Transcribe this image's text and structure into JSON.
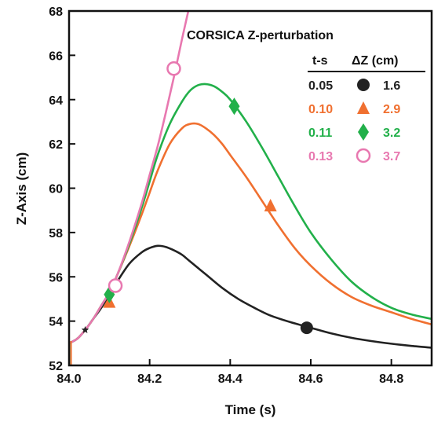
{
  "chart_data": {
    "type": "line",
    "title": "CORSICA Z-perturbation",
    "xlabel": "Time (s)",
    "ylabel": "Z-Axis (cm)",
    "xlim": [
      84.0,
      84.9
    ],
    "ylim": [
      52,
      68
    ],
    "x_ticks": [
      "84.0",
      "84.2",
      "84.4",
      "84.6",
      "84.8"
    ],
    "x_tick_values": [
      84.0,
      84.2,
      84.4,
      84.6,
      84.8
    ],
    "y_ticks": [
      "52",
      "54",
      "56",
      "58",
      "60",
      "62",
      "64",
      "66",
      "68"
    ],
    "y_tick_values": [
      52,
      54,
      56,
      58,
      60,
      62,
      64,
      66,
      68
    ],
    "legend": {
      "header_ts": "t-s",
      "header_dz": "ΔZ (cm)",
      "placement": "top-right"
    },
    "series": [
      {
        "ts": "0.05",
        "dz": "1.6",
        "color": "#222222",
        "marker": "filled-circle",
        "x": [
          84.0,
          84.02,
          84.04,
          84.06,
          84.08,
          84.1,
          84.12,
          84.15,
          84.18,
          84.2,
          84.22,
          84.24,
          84.26,
          84.28,
          84.3,
          84.34,
          84.38,
          84.42,
          84.46,
          84.5,
          84.55,
          84.6,
          84.65,
          84.7,
          84.75,
          84.8,
          84.85,
          84.9
        ],
        "y": [
          53.0,
          53.2,
          53.6,
          54.1,
          54.6,
          55.2,
          55.8,
          56.6,
          57.1,
          57.3,
          57.4,
          57.35,
          57.2,
          57.0,
          56.7,
          56.1,
          55.5,
          55.0,
          54.6,
          54.25,
          53.95,
          53.7,
          53.45,
          53.25,
          53.1,
          52.98,
          52.88,
          52.8
        ],
        "marker_points": [
          {
            "x": 84.59,
            "y": 53.7
          }
        ]
      },
      {
        "ts": "0.10",
        "dz": "2.9",
        "color": "#f07030",
        "marker": "filled-triangle",
        "x": [
          84.0,
          84.02,
          84.04,
          84.06,
          84.08,
          84.1,
          84.12,
          84.15,
          84.18,
          84.2,
          84.22,
          84.25,
          84.28,
          84.3,
          84.32,
          84.34,
          84.36,
          84.38,
          84.4,
          84.44,
          84.48,
          84.52,
          84.56,
          84.6,
          84.65,
          84.7,
          84.75,
          84.8,
          84.85,
          84.9
        ],
        "y": [
          53.0,
          53.2,
          53.6,
          54.1,
          54.7,
          55.3,
          56.1,
          57.4,
          58.8,
          59.8,
          60.8,
          62.0,
          62.7,
          62.9,
          62.9,
          62.7,
          62.4,
          62.0,
          61.5,
          60.5,
          59.4,
          58.3,
          57.3,
          56.5,
          55.7,
          55.1,
          54.7,
          54.4,
          54.1,
          53.85
        ],
        "marker_points": [
          {
            "x": 84.1,
            "y": 54.85
          },
          {
            "x": 84.5,
            "y": 59.2
          }
        ]
      },
      {
        "ts": "0.11",
        "dz": "3.2",
        "color": "#22b04a",
        "marker": "filled-diamond",
        "x": [
          84.0,
          84.02,
          84.04,
          84.06,
          84.08,
          84.1,
          84.12,
          84.15,
          84.18,
          84.2,
          84.22,
          84.25,
          84.28,
          84.3,
          84.32,
          84.34,
          84.36,
          84.38,
          84.4,
          84.44,
          84.48,
          84.52,
          84.56,
          84.6,
          84.65,
          84.7,
          84.75,
          84.8,
          84.85,
          84.9
        ],
        "y": [
          53.0,
          53.2,
          53.6,
          54.1,
          54.7,
          55.3,
          56.1,
          57.5,
          59.1,
          60.3,
          61.5,
          62.9,
          63.9,
          64.4,
          64.65,
          64.7,
          64.6,
          64.35,
          64.0,
          63.0,
          61.8,
          60.5,
          59.2,
          58.0,
          56.8,
          55.8,
          55.1,
          54.6,
          54.3,
          54.1
        ],
        "marker_points": [
          {
            "x": 84.1,
            "y": 55.2
          },
          {
            "x": 84.41,
            "y": 63.7
          }
        ]
      },
      {
        "ts": "0.13",
        "dz": "3.7",
        "color": "#e878b0",
        "marker": "open-circle",
        "x": [
          84.0,
          84.02,
          84.04,
          84.06,
          84.08,
          84.1,
          84.12,
          84.15,
          84.18,
          84.2,
          84.22,
          84.24,
          84.26,
          84.28,
          84.296
        ],
        "y": [
          53.0,
          53.2,
          53.6,
          54.1,
          54.7,
          55.3,
          56.1,
          57.6,
          59.3,
          60.6,
          61.9,
          63.4,
          65.0,
          66.7,
          68.0
        ],
        "marker_points": [
          {
            "x": 84.115,
            "y": 55.6
          },
          {
            "x": 84.26,
            "y": 65.4
          }
        ]
      }
    ],
    "extra_marker": {
      "x": 84.04,
      "y": 53.6,
      "color": "#222222",
      "marker": "star"
    }
  }
}
